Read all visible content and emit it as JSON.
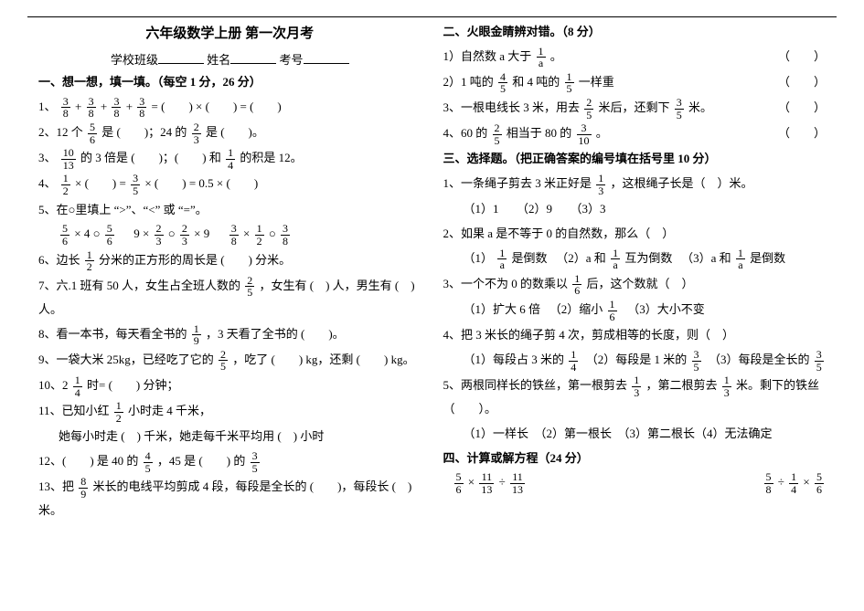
{
  "left": {
    "title": "六年级数学上册  第一次月考",
    "sub_school": "学校班级",
    "sub_name": "姓名",
    "sub_id": "考号",
    "section1": "一、想一想，填一填。（每空 1 分，26 分）",
    "q1_pre": "1、",
    "q1_mid": " = (　　) × (　　) = (　　)",
    "q2": "2、12 个",
    "q2_mid": "是 (　　)；24 的",
    "q2_end": "是 (　　)。",
    "q3": "3、",
    "q3_mid1": "的 3 倍是 (　　)；(　　) 和",
    "q3_mid2": "的积是 12。",
    "q4": "4、",
    "q4_mid": " × (　　) =",
    "q4_mid2": " × (　　) = 0.5 × (　　)",
    "q5": "5、在○里填上 “>”、“<” 或 “=”。",
    "q5_a": " × 4 ○ ",
    "q5_b": "9 × ",
    "q5_b2": " ○ ",
    "q5_b3": " × 9",
    "q5_c1": " × ",
    "q5_c2": " ○ ",
    "q6": "6、边长",
    "q6_end": "分米的正方形的周长是 (　　) 分米。",
    "q7": "7、六.1 班有 50 人，女生占全班人数的",
    "q7_end": "，女生有 (　) 人，男生有 (　) 人。",
    "q8": "8、看一本书，每天看全书的",
    "q8_end": "，3 天看了全书的 (　　)。",
    "q9": "9、一袋大米 25kg，已经吃了它的",
    "q9_end": "，吃了 (　　) kg，还剩 (　　) kg。",
    "q10": "10、2",
    "q10_end": "时= (　　) 分钟；",
    "q11": "11、已知小红",
    "q11_mid": "小时走 4 千米，",
    "q11_b": "她每小时走 (　) 千米，她走每千米平均用 (　) 小时",
    "q12": "12、(　　) 是 40 的",
    "q12_mid": "，45 是 (　　) 的",
    "q13": "13、把",
    "q13_end": "米长的电线平均剪成 4 段，每段是全长的 (　　)，每段长 (　) 米。"
  },
  "right": {
    "section2": "二、火眼金睛辨对错。（8 分）",
    "r1": "1）自然数 a 大于",
    "r1_end": "。",
    "r2": "2）1 吨的",
    "r2_mid": "和 4 吨的",
    "r2_end": "一样重",
    "r3": "3、一根电线长 3 米，用去",
    "r3_mid": "米后，还剩下",
    "r3_end": "米。",
    "r4": "4、60 的",
    "r4_mid": "相当于 80 的",
    "r4_end": "。",
    "section3": "三、选择题。（把正确答案的编号填在括号里 10 分）",
    "c1": "1、一条绳子剪去 3 米正好是",
    "c1_end": "，这根绳子长是（　）米。",
    "c1_opts": "（1）1　　（2）9　　（3）3",
    "c2": "2、如果 a 是不等于 0 的自然数，那么（　）",
    "c2_o1": "（1）",
    "c2_o1b": "是倒数",
    "c2_o2": "（2）a 和",
    "c2_o2b": "互为倒数",
    "c2_o3": "（3）a 和",
    "c2_o3b": "是倒数",
    "c3": "3、一个不为 0 的数乘以",
    "c3_end": "后，这个数就（　）",
    "c3_opts_a": "（1）扩大 6 倍",
    "c3_opts_b": "（2）缩小",
    "c3_opts_c": "（3）大小不变",
    "c4": "4、把 3 米长的绳子剪 4 次，剪成相等的长度，则（　）",
    "c4_o1": "（1）每段占 3 米的",
    "c4_o2": "（2）每段是 1 米的",
    "c4_o3": "（3）每段是全长的",
    "c5": "5、两根同样长的铁丝，第一根剪去",
    "c5_mid": "，第二根剪去",
    "c5_end": "米。剩下的铁丝（　　）。",
    "c5_opts": "（1）一样长　（2）第一根长　（3）第二根长（4）无法确定",
    "section4": "四、计算或解方程（24 分）",
    "eq1a": " × ",
    "eq1b": " ÷ ",
    "eq2a": " ÷ ",
    "eq2b": " × "
  },
  "fracs": {
    "f3_8": {
      "n": "3",
      "d": "8"
    },
    "f5_6": {
      "n": "5",
      "d": "6"
    },
    "f2_3": {
      "n": "2",
      "d": "3"
    },
    "f10_13": {
      "n": "10",
      "d": "13"
    },
    "f1_4": {
      "n": "1",
      "d": "4"
    },
    "f1_2": {
      "n": "1",
      "d": "2"
    },
    "f3_5": {
      "n": "3",
      "d": "5"
    },
    "f3_8b": {
      "n": "3",
      "d": "8"
    },
    "f2_5": {
      "n": "2",
      "d": "5"
    },
    "f1_9": {
      "n": "1",
      "d": "9"
    },
    "f4_5": {
      "n": "4",
      "d": "5"
    },
    "f1_5": {
      "n": "1",
      "d": "5"
    },
    "f2_5b": {
      "n": "2",
      "d": "5"
    },
    "f3_10": {
      "n": "3",
      "d": "10"
    },
    "f1_3": {
      "n": "1",
      "d": "3"
    },
    "f1_a": {
      "n": "1",
      "d": "a"
    },
    "f1_6": {
      "n": "1",
      "d": "6"
    },
    "f8_9": {
      "n": "8",
      "d": "9"
    },
    "f11_13": {
      "n": "11",
      "d": "13"
    },
    "f5_8": {
      "n": "5",
      "d": "8"
    }
  }
}
